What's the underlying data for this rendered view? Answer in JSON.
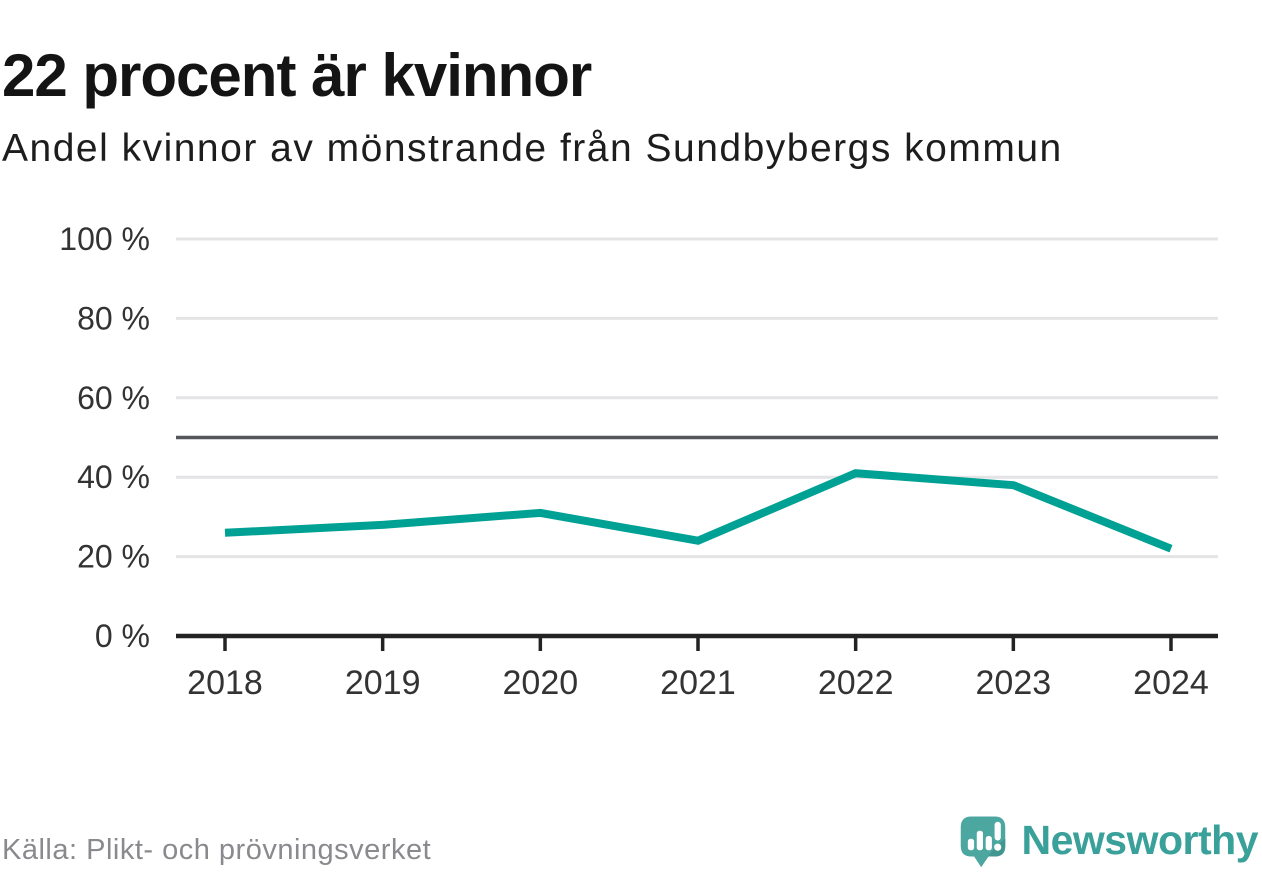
{
  "header": {
    "title": "22 procent är kvinnor",
    "subtitle": "Andel kvinnor av mönstrande från Sundbybergs kommun"
  },
  "chart_data": {
    "type": "line",
    "title": "22 procent är kvinnor",
    "subtitle": "Andel kvinnor av mönstrande från Sundbybergs kommun",
    "x": [
      2018,
      2019,
      2020,
      2021,
      2022,
      2023,
      2024
    ],
    "series": [
      {
        "name": "Andel kvinnor av mönstrande",
        "values": [
          26,
          28,
          31,
          24,
          41,
          38,
          22
        ]
      }
    ],
    "unit": "%",
    "ylim": [
      0,
      100
    ],
    "yticks": [
      0,
      20,
      40,
      60,
      80,
      100
    ],
    "ytick_suffix": " %",
    "reference_line": {
      "value": 50
    },
    "grid": true,
    "legend": "none",
    "xlabel": "",
    "ylabel": ""
  },
  "colors": {
    "line": "#00a195",
    "grid": "#e4e4e6",
    "reference": "#55565b",
    "axis": "#232323",
    "tick_text": "#333333",
    "logo_teal": "#4da7a1",
    "logo_bar_white": "#ffffff"
  },
  "footer": {
    "source": "Källa: Plikt- och prövningsverket",
    "logo_text": "Newsworthy"
  }
}
